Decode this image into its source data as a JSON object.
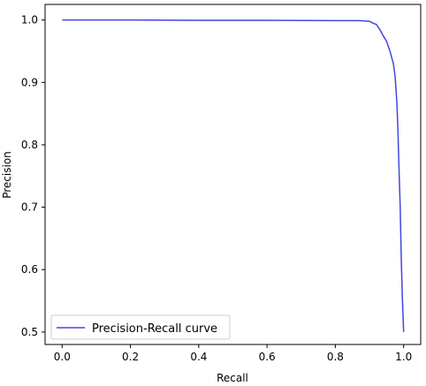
{
  "chart_data": {
    "type": "line",
    "xlabel": "Recall",
    "ylabel": "Precision",
    "xlim": [
      -0.05,
      1.05
    ],
    "ylim": [
      0.48,
      1.025
    ],
    "xticks": [
      0.0,
      0.2,
      0.4,
      0.6,
      0.8,
      1.0
    ],
    "xtick_labels": [
      "0.0",
      "0.2",
      "0.4",
      "0.6",
      "0.8",
      "1.0"
    ],
    "yticks": [
      0.5,
      0.6,
      0.7,
      0.8,
      0.9,
      1.0
    ],
    "ytick_labels": [
      "0.5",
      "0.6",
      "0.7",
      "0.8",
      "0.9",
      "1.0"
    ],
    "grid": false,
    "legend_position": "lower-left",
    "series": [
      {
        "name": "Precision-Recall curve",
        "color": "#4545e0",
        "x": [
          0.0,
          0.2,
          0.4,
          0.6,
          0.8,
          0.87,
          0.9,
          0.91,
          0.92,
          0.93,
          0.94,
          0.95,
          0.96,
          0.97,
          0.975,
          0.98,
          0.983,
          0.986,
          0.99,
          0.993,
          0.996,
          0.998,
          1.0
        ],
        "y": [
          1.0,
          1.0,
          0.9995,
          0.9995,
          0.999,
          0.999,
          0.998,
          0.995,
          0.993,
          0.985,
          0.975,
          0.966,
          0.95,
          0.93,
          0.91,
          0.87,
          0.83,
          0.77,
          0.7,
          0.62,
          0.56,
          0.53,
          0.5
        ]
      }
    ]
  }
}
